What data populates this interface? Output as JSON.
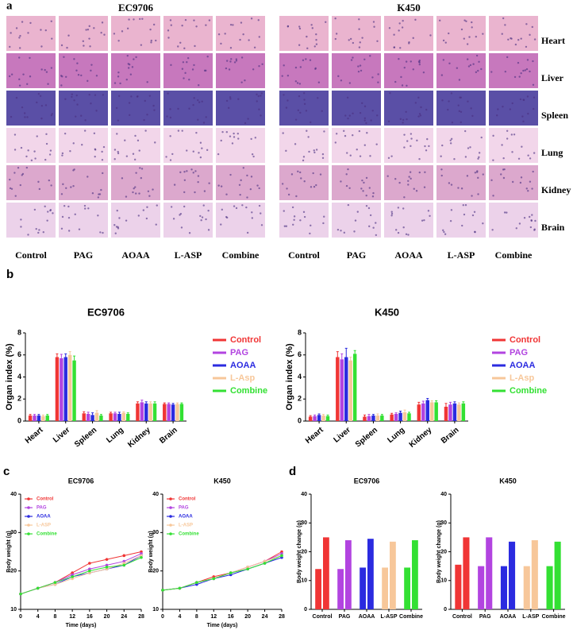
{
  "panel_labels": [
    "a",
    "b",
    "c",
    "d"
  ],
  "histology": {
    "groups": [
      "EC9706",
      "K450"
    ],
    "rows": [
      "Heart",
      "Liver",
      "Spleen",
      "Lung",
      "Kidney",
      "Brain"
    ],
    "columns": [
      "Control",
      "PAG",
      "AOAA",
      "L-ASP",
      "Combine"
    ]
  },
  "chart_data": [
    {
      "type": "bar",
      "title": "EC9706",
      "ylabel": "Organ index (%)",
      "categories": [
        "Heart",
        "Liver",
        "Spleen",
        "Lung",
        "Kidney",
        "Brain"
      ],
      "series": [
        {
          "name": "Control",
          "color": "#f03535",
          "values": [
            0.5,
            5.8,
            0.7,
            0.7,
            1.6,
            1.55
          ],
          "errors": [
            0.1,
            0.3,
            0.15,
            0.1,
            0.15,
            0.1
          ]
        },
        {
          "name": "PAG",
          "color": "#b244e0",
          "values": [
            0.5,
            5.7,
            0.65,
            0.7,
            1.7,
            1.55
          ],
          "errors": [
            0.1,
            0.35,
            0.15,
            0.1,
            0.2,
            0.1
          ]
        },
        {
          "name": "AOAA",
          "color": "#2b2be0",
          "values": [
            0.5,
            5.8,
            0.55,
            0.65,
            1.6,
            1.5
          ],
          "errors": [
            0.1,
            0.3,
            0.2,
            0.15,
            0.15,
            0.1
          ]
        },
        {
          "name": "L-Asp",
          "color": "#f7c79a",
          "values": [
            0.45,
            6.0,
            0.75,
            0.75,
            1.6,
            1.55
          ],
          "errors": [
            0.1,
            0.3,
            0.2,
            0.1,
            0.15,
            0.1
          ]
        },
        {
          "name": "Combine",
          "color": "#33e033",
          "values": [
            0.5,
            5.5,
            0.5,
            0.65,
            1.6,
            1.55
          ],
          "errors": [
            0.1,
            0.4,
            0.1,
            0.1,
            0.15,
            0.1
          ]
        }
      ],
      "ylim": [
        0,
        8
      ],
      "yticks": [
        0,
        2,
        4,
        6,
        8
      ],
      "legend": "right"
    },
    {
      "type": "bar",
      "title": "K450",
      "ylabel": "Organ index (%)",
      "categories": [
        "Heart",
        "Liver",
        "Spleen",
        "Lung",
        "Kidney",
        "Brain"
      ],
      "series": [
        {
          "name": "Control",
          "color": "#f03535",
          "values": [
            0.4,
            5.8,
            0.4,
            0.6,
            1.5,
            1.3
          ],
          "errors": [
            0.1,
            0.5,
            0.15,
            0.1,
            0.2,
            0.3
          ]
        },
        {
          "name": "PAG",
          "color": "#b244e0",
          "values": [
            0.45,
            5.6,
            0.45,
            0.65,
            1.6,
            1.5
          ],
          "errors": [
            0.1,
            0.5,
            0.15,
            0.1,
            0.2,
            0.2
          ]
        },
        {
          "name": "AOAA",
          "color": "#2b2be0",
          "values": [
            0.55,
            5.8,
            0.5,
            0.75,
            1.9,
            1.6
          ],
          "errors": [
            0.1,
            0.8,
            0.1,
            0.15,
            0.15,
            0.15
          ]
        },
        {
          "name": "L-Asp",
          "color": "#f7c79a",
          "values": [
            0.5,
            5.5,
            0.5,
            0.8,
            1.7,
            1.5
          ],
          "errors": [
            0.1,
            0.3,
            0.15,
            0.2,
            0.15,
            0.15
          ]
        },
        {
          "name": "Combine",
          "color": "#33e033",
          "values": [
            0.45,
            6.1,
            0.5,
            0.7,
            1.7,
            1.6
          ],
          "errors": [
            0.1,
            0.3,
            0.1,
            0.1,
            0.15,
            0.15
          ]
        }
      ],
      "ylim": [
        0,
        8
      ],
      "yticks": [
        0,
        2,
        4,
        6,
        8
      ],
      "legend": "right"
    },
    {
      "type": "line",
      "title": "EC9706",
      "xlabel": "Time (days)",
      "ylabel": "Body weight (g)",
      "x": [
        0,
        4,
        8,
        12,
        16,
        20,
        24,
        28
      ],
      "series": [
        {
          "name": "Control",
          "color": "#f03535",
          "values": [
            14,
            15.5,
            17,
            19.5,
            22,
            23,
            24,
            25
          ]
        },
        {
          "name": "PAG",
          "color": "#b244e0",
          "values": [
            14,
            15.5,
            17,
            19,
            20.5,
            21.5,
            22.5,
            24.5
          ]
        },
        {
          "name": "AOAA",
          "color": "#2b2be0",
          "values": [
            14,
            15.5,
            16.5,
            18.5,
            19.5,
            20.5,
            21.5,
            24
          ]
        },
        {
          "name": "L-ASP",
          "color": "#f7c79a",
          "values": [
            14,
            15.5,
            16.5,
            18,
            19.5,
            20.5,
            22,
            24
          ]
        },
        {
          "name": "Combine",
          "color": "#33e033",
          "values": [
            14,
            15.5,
            17,
            18.5,
            20,
            21,
            21.5,
            23.5
          ]
        }
      ],
      "xlim": [
        0,
        28
      ],
      "xticks": [
        0,
        4,
        8,
        12,
        16,
        20,
        24,
        28
      ],
      "ylim": [
        10,
        40
      ],
      "yticks": [
        10,
        20,
        30,
        40
      ],
      "legend": "upper left"
    },
    {
      "type": "line",
      "title": "K450",
      "xlabel": "Time (days)",
      "ylabel": "Body weight (g)",
      "x": [
        0,
        4,
        8,
        12,
        16,
        20,
        24,
        28
      ],
      "series": [
        {
          "name": "Control",
          "color": "#f03535",
          "values": [
            15,
            15.5,
            17,
            18.5,
            19.5,
            21,
            22.5,
            25
          ]
        },
        {
          "name": "PAG",
          "color": "#b244e0",
          "values": [
            15,
            15.5,
            17,
            18,
            19.5,
            21,
            22.5,
            24.5
          ]
        },
        {
          "name": "AOAA",
          "color": "#2b2be0",
          "values": [
            15,
            15.5,
            16.5,
            18,
            19,
            20.5,
            22,
            23.5
          ]
        },
        {
          "name": "L-ASP",
          "color": "#f7c79a",
          "values": [
            15,
            15.5,
            17,
            18,
            19.5,
            21,
            22.5,
            24
          ]
        },
        {
          "name": "Combine",
          "color": "#33e033",
          "values": [
            15,
            15.5,
            17,
            18,
            19.5,
            20.5,
            22,
            24
          ]
        }
      ],
      "xlim": [
        0,
        28
      ],
      "xticks": [
        0,
        4,
        8,
        12,
        16,
        20,
        24,
        28
      ],
      "ylim": [
        10,
        40
      ],
      "yticks": [
        10,
        20,
        30,
        40
      ],
      "legend": "upper left"
    },
    {
      "type": "bar",
      "title": "EC9706",
      "ylabel": "Body weight change (g)",
      "categories": [
        "Control",
        "PAG",
        "AOAA",
        "L-ASP",
        "Combine"
      ],
      "colors": [
        "#f03535",
        "#b244e0",
        "#2b2be0",
        "#f7c79a",
        "#33e033"
      ],
      "series": [
        {
          "values": [
            14,
            14,
            14.5,
            14.5,
            14.5
          ]
        },
        {
          "values": [
            25,
            24,
            24.5,
            23.5,
            24
          ]
        }
      ],
      "ylim": [
        0,
        40
      ],
      "yticks": [
        0,
        10,
        20,
        30,
        40
      ]
    },
    {
      "type": "bar",
      "title": "K450",
      "ylabel": "Body weight change (g)",
      "categories": [
        "Control",
        "PAG",
        "AOAA",
        "L-ASP",
        "Combine"
      ],
      "colors": [
        "#f03535",
        "#b244e0",
        "#2b2be0",
        "#f7c79a",
        "#33e033"
      ],
      "series": [
        {
          "values": [
            15.5,
            15,
            15,
            15,
            15
          ]
        },
        {
          "values": [
            25,
            25,
            23.5,
            24,
            23.5
          ]
        }
      ],
      "ylim": [
        0,
        40
      ],
      "yticks": [
        0,
        10,
        20,
        30,
        40
      ]
    }
  ]
}
